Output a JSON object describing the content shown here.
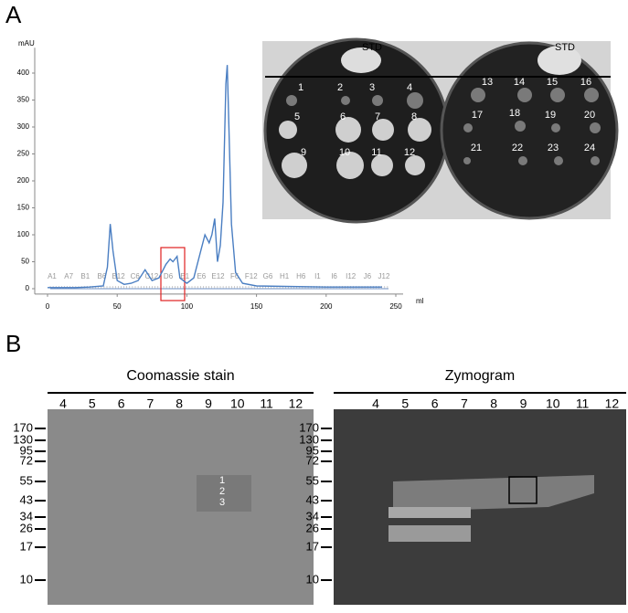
{
  "panel_labels": [
    "A",
    "B"
  ],
  "chart_data": {
    "type": "line",
    "y_unit": "mAU",
    "x_unit": "ml",
    "color": "#4a7ec2",
    "x": [
      0,
      10,
      20,
      30,
      40,
      43,
      45,
      47,
      50,
      55,
      60,
      65,
      70,
      75,
      80,
      85,
      88,
      90,
      93,
      95,
      100,
      105,
      110,
      113,
      116,
      118,
      120,
      122,
      124,
      126,
      128,
      129,
      130,
      132,
      135,
      140,
      150,
      200,
      240
    ],
    "values": [
      2,
      2,
      2,
      3,
      5,
      40,
      120,
      70,
      15,
      8,
      10,
      15,
      35,
      15,
      20,
      45,
      55,
      50,
      60,
      20,
      10,
      20,
      70,
      100,
      85,
      100,
      130,
      50,
      80,
      160,
      380,
      415,
      320,
      120,
      30,
      10,
      5,
      3,
      3
    ],
    "xlim": [
      0,
      250
    ],
    "xticks": [
      0,
      50,
      100,
      150,
      200,
      250
    ],
    "ylim": [
      -10,
      430
    ],
    "yticks": [
      0,
      50,
      100,
      150,
      200,
      250,
      300,
      350,
      400
    ],
    "fractions": [
      "A1",
      "A7",
      "B1",
      "B6",
      "B12",
      "C6",
      "C12",
      "D6",
      "E1",
      "E6",
      "E12",
      "F6",
      "F12",
      "G6",
      "H1",
      "H6",
      "I1",
      "I6",
      "I12",
      "J6",
      "J12"
    ]
  },
  "plates": {
    "standard": "STD",
    "wells": [
      "1",
      "2",
      "3",
      "4",
      "5",
      "6",
      "7",
      "8",
      "9",
      "10",
      "11",
      "12",
      "13",
      "14",
      "15",
      "16",
      "17",
      "18",
      "19",
      "20",
      "21",
      "22",
      "23",
      "24"
    ]
  },
  "gels": [
    {
      "title": "Coomassie stain",
      "lanes": [
        "4",
        "5",
        "6",
        "7",
        "8",
        "9",
        "10",
        "11",
        "12"
      ],
      "markers": [
        "170",
        "130",
        "95",
        "72",
        "55",
        "43",
        "34",
        "26",
        "17",
        "10"
      ],
      "band_labels": [
        "1",
        "2",
        "3"
      ]
    },
    {
      "title": "Zymogram",
      "lanes": [
        "4",
        "5",
        "6",
        "7",
        "8",
        "9",
        "10",
        "11",
        "12"
      ],
      "markers": [
        "170",
        "130",
        "95",
        "72",
        "55",
        "43",
        "34",
        "26",
        "17",
        "10"
      ]
    }
  ]
}
